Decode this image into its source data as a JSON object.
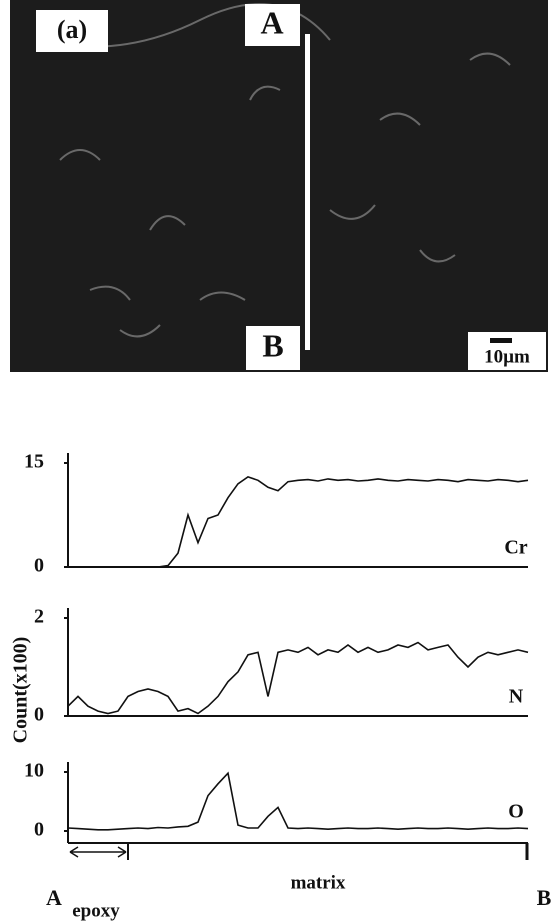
{
  "image": {
    "panel_label": "(a)",
    "marker_top": "A",
    "marker_bottom": "B",
    "scale_bar": "10µm"
  },
  "profile": {
    "y_label": "Count(x100)",
    "start": "A",
    "end": "B",
    "regions": [
      "epoxy",
      "matrix"
    ]
  },
  "chart_data": [
    {
      "type": "line",
      "ylim": [
        0,
        15
      ],
      "yticks": [
        0,
        15
      ],
      "series": [
        {
          "name": "Cr",
          "color": "#111111",
          "values": [
            0,
            0,
            0,
            0,
            0,
            0,
            0,
            0,
            0,
            0,
            0.2,
            2,
            7.5,
            3.5,
            7,
            7.5,
            10,
            12,
            13,
            12.5,
            11.5,
            11,
            12.3,
            12.5,
            12.6,
            12.4,
            12.7,
            12.5,
            12.6,
            12.4,
            12.5,
            12.7,
            12.5,
            12.4,
            12.6,
            12.5,
            12.4,
            12.6,
            12.5,
            12.3,
            12.6,
            12.5,
            12.4,
            12.6,
            12.5,
            12.3,
            12.5
          ]
        }
      ]
    },
    {
      "type": "line",
      "ylim": [
        0,
        2
      ],
      "yticks": [
        0,
        2
      ],
      "series": [
        {
          "name": "N",
          "color": "#111111",
          "values": [
            0.2,
            0.4,
            0.2,
            0.1,
            0.05,
            0.1,
            0.4,
            0.5,
            0.55,
            0.5,
            0.4,
            0.1,
            0.15,
            0.05,
            0.2,
            0.4,
            0.7,
            0.9,
            1.25,
            1.3,
            0.4,
            1.3,
            1.35,
            1.3,
            1.4,
            1.25,
            1.35,
            1.3,
            1.45,
            1.3,
            1.4,
            1.3,
            1.35,
            1.45,
            1.4,
            1.5,
            1.35,
            1.4,
            1.45,
            1.2,
            1.0,
            1.2,
            1.3,
            1.25,
            1.3,
            1.35,
            1.3
          ]
        }
      ]
    },
    {
      "type": "line",
      "ylim": [
        0,
        10
      ],
      "yticks": [
        0,
        10
      ],
      "series": [
        {
          "name": "O",
          "color": "#111111",
          "values": [
            0.5,
            0.4,
            0.3,
            0.2,
            0.2,
            0.3,
            0.4,
            0.5,
            0.4,
            0.6,
            0.5,
            0.7,
            0.8,
            1.5,
            6,
            8,
            9.8,
            1,
            0.5,
            0.5,
            2.5,
            4,
            0.5,
            0.4,
            0.5,
            0.4,
            0.3,
            0.4,
            0.5,
            0.4,
            0.4,
            0.5,
            0.4,
            0.3,
            0.4,
            0.5,
            0.4,
            0.4,
            0.5,
            0.4,
            0.3,
            0.4,
            0.5,
            0.4,
            0.4,
            0.5,
            0.4
          ]
        }
      ]
    }
  ]
}
